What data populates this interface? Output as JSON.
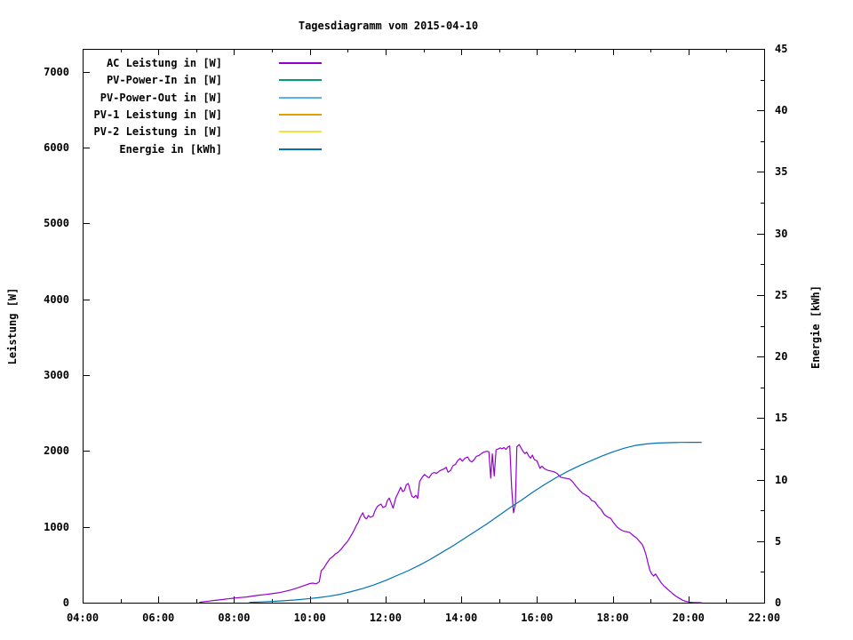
{
  "chart_data": {
    "type": "line",
    "title": "Tagesdiagramm vom 2015-04-10",
    "ylabel_left": "Leistung [W]",
    "ylabel_right": "Energie [kWh]",
    "x_axis": {
      "unit": "time",
      "range_hours": [
        4,
        22
      ],
      "major_tick_hours": [
        4,
        6,
        8,
        10,
        12,
        14,
        16,
        18,
        20,
        22
      ],
      "major_tick_labels": [
        "04:00",
        "06:00",
        "08:00",
        "10:00",
        "12:00",
        "14:00",
        "16:00",
        "18:00",
        "20:00",
        "22:00"
      ],
      "minor_tick_hours": [
        5,
        7,
        9,
        11,
        13,
        15,
        17,
        19,
        21
      ]
    },
    "y_left_axis": {
      "label": "Leistung [W]",
      "min": 0,
      "max": 7300,
      "tick_values": [
        0,
        1000,
        2000,
        3000,
        4000,
        5000,
        6000,
        7000
      ]
    },
    "y_right_axis": {
      "label": "Energie [kWh]",
      "min": 0,
      "max": 45,
      "major_tick_values": [
        0,
        5,
        10,
        15,
        20,
        25,
        30,
        35,
        40,
        45
      ],
      "minor_tick_values": [
        2.5,
        7.5,
        12.5,
        17.5,
        22.5,
        27.5,
        32.5,
        37.5,
        42.5
      ]
    },
    "grid": false,
    "legend_position": "top-left-inside",
    "legend": [
      {
        "label": "AC Leistung in [W]",
        "color": "#9400d3"
      },
      {
        "label": "PV-Power-In in [W]",
        "color": "#009e73"
      },
      {
        "label": "PV-Power-Out in [W]",
        "color": "#56b4e9"
      },
      {
        "label": "PV-1 Leistung in [W]",
        "color": "#e69f00"
      },
      {
        "label": "PV-2 Leistung in [W]",
        "color": "#f0e442"
      },
      {
        "label": "Energie in [kWh]",
        "color": "#0072b2"
      }
    ],
    "series": [
      {
        "name": "AC Leistung in [W]",
        "color": "#9400d3",
        "axis": "left",
        "points": [
          [
            7.08,
            5
          ],
          [
            7.2,
            12
          ],
          [
            7.33,
            20
          ],
          [
            7.5,
            30
          ],
          [
            7.67,
            40
          ],
          [
            7.83,
            50
          ],
          [
            8.0,
            60
          ],
          [
            8.17,
            68
          ],
          [
            8.33,
            75
          ],
          [
            8.5,
            88
          ],
          [
            8.67,
            100
          ],
          [
            8.83,
            108
          ],
          [
            9.0,
            118
          ],
          [
            9.17,
            130
          ],
          [
            9.33,
            148
          ],
          [
            9.5,
            168
          ],
          [
            9.67,
            195
          ],
          [
            9.83,
            222
          ],
          [
            10.0,
            252
          ],
          [
            10.08,
            258
          ],
          [
            10.17,
            248
          ],
          [
            10.25,
            275
          ],
          [
            10.3,
            420
          ],
          [
            10.37,
            455
          ],
          [
            10.45,
            520
          ],
          [
            10.53,
            580
          ],
          [
            10.6,
            605
          ],
          [
            10.67,
            640
          ],
          [
            10.75,
            665
          ],
          [
            10.83,
            705
          ],
          [
            10.92,
            765
          ],
          [
            11.0,
            810
          ],
          [
            11.08,
            875
          ],
          [
            11.17,
            955
          ],
          [
            11.22,
            1010
          ],
          [
            11.28,
            1060
          ],
          [
            11.33,
            1125
          ],
          [
            11.4,
            1185
          ],
          [
            11.45,
            1120
          ],
          [
            11.5,
            1105
          ],
          [
            11.55,
            1150
          ],
          [
            11.6,
            1125
          ],
          [
            11.67,
            1140
          ],
          [
            11.72,
            1210
          ],
          [
            11.78,
            1265
          ],
          [
            11.83,
            1285
          ],
          [
            11.88,
            1300
          ],
          [
            11.93,
            1255
          ],
          [
            12.0,
            1270
          ],
          [
            12.05,
            1345
          ],
          [
            12.1,
            1380
          ],
          [
            12.15,
            1310
          ],
          [
            12.2,
            1245
          ],
          [
            12.27,
            1380
          ],
          [
            12.33,
            1445
          ],
          [
            12.4,
            1520
          ],
          [
            12.45,
            1465
          ],
          [
            12.5,
            1480
          ],
          [
            12.55,
            1555
          ],
          [
            12.6,
            1570
          ],
          [
            12.65,
            1480
          ],
          [
            12.7,
            1400
          ],
          [
            12.75,
            1385
          ],
          [
            12.8,
            1415
          ],
          [
            12.85,
            1375
          ],
          [
            12.9,
            1595
          ],
          [
            12.97,
            1655
          ],
          [
            13.03,
            1690
          ],
          [
            13.1,
            1660
          ],
          [
            13.15,
            1645
          ],
          [
            13.22,
            1700
          ],
          [
            13.28,
            1715
          ],
          [
            13.35,
            1705
          ],
          [
            13.42,
            1735
          ],
          [
            13.48,
            1750
          ],
          [
            13.55,
            1765
          ],
          [
            13.6,
            1785
          ],
          [
            13.65,
            1720
          ],
          [
            13.72,
            1745
          ],
          [
            13.78,
            1805
          ],
          [
            13.85,
            1825
          ],
          [
            13.9,
            1870
          ],
          [
            13.97,
            1900
          ],
          [
            14.03,
            1865
          ],
          [
            14.1,
            1905
          ],
          [
            14.17,
            1920
          ],
          [
            14.22,
            1875
          ],
          [
            14.28,
            1855
          ],
          [
            14.33,
            1880
          ],
          [
            14.4,
            1930
          ],
          [
            14.47,
            1940
          ],
          [
            14.53,
            1965
          ],
          [
            14.6,
            1985
          ],
          [
            14.67,
            1995
          ],
          [
            14.73,
            1990
          ],
          [
            14.78,
            1640
          ],
          [
            14.82,
            1960
          ],
          [
            14.87,
            1670
          ],
          [
            14.92,
            2015
          ],
          [
            14.97,
            2025
          ],
          [
            15.03,
            2040
          ],
          [
            15.08,
            2030
          ],
          [
            15.13,
            2045
          ],
          [
            15.18,
            2020
          ],
          [
            15.23,
            2050
          ],
          [
            15.28,
            2065
          ],
          [
            15.33,
            1520
          ],
          [
            15.38,
            1185
          ],
          [
            15.43,
            1290
          ],
          [
            15.47,
            2055
          ],
          [
            15.53,
            2085
          ],
          [
            15.58,
            2040
          ],
          [
            15.63,
            1995
          ],
          [
            15.68,
            1965
          ],
          [
            15.73,
            1985
          ],
          [
            15.78,
            1935
          ],
          [
            15.83,
            1905
          ],
          [
            15.88,
            1945
          ],
          [
            15.93,
            1885
          ],
          [
            16.0,
            1870
          ],
          [
            16.08,
            1770
          ],
          [
            16.13,
            1800
          ],
          [
            16.2,
            1765
          ],
          [
            16.28,
            1745
          ],
          [
            16.37,
            1735
          ],
          [
            16.45,
            1725
          ],
          [
            16.53,
            1705
          ],
          [
            16.62,
            1655
          ],
          [
            16.7,
            1645
          ],
          [
            16.78,
            1638
          ],
          [
            16.87,
            1628
          ],
          [
            16.95,
            1590
          ],
          [
            17.03,
            1535
          ],
          [
            17.12,
            1485
          ],
          [
            17.2,
            1445
          ],
          [
            17.28,
            1420
          ],
          [
            17.37,
            1395
          ],
          [
            17.45,
            1345
          ],
          [
            17.53,
            1330
          ],
          [
            17.62,
            1265
          ],
          [
            17.7,
            1225
          ],
          [
            17.78,
            1160
          ],
          [
            17.87,
            1130
          ],
          [
            17.95,
            1110
          ],
          [
            18.03,
            1050
          ],
          [
            18.12,
            995
          ],
          [
            18.2,
            965
          ],
          [
            18.28,
            945
          ],
          [
            18.37,
            935
          ],
          [
            18.45,
            925
          ],
          [
            18.53,
            890
          ],
          [
            18.62,
            855
          ],
          [
            18.68,
            825
          ],
          [
            18.73,
            795
          ],
          [
            18.78,
            768
          ],
          [
            18.83,
            710
          ],
          [
            18.88,
            630
          ],
          [
            18.93,
            525
          ],
          [
            18.98,
            430
          ],
          [
            19.03,
            380
          ],
          [
            19.08,
            350
          ],
          [
            19.13,
            378
          ],
          [
            19.18,
            340
          ],
          [
            19.27,
            268
          ],
          [
            19.35,
            222
          ],
          [
            19.43,
            185
          ],
          [
            19.52,
            148
          ],
          [
            19.6,
            112
          ],
          [
            19.68,
            82
          ],
          [
            19.77,
            55
          ],
          [
            19.85,
            32
          ],
          [
            19.93,
            18
          ],
          [
            20.02,
            8
          ],
          [
            20.1,
            4
          ],
          [
            20.2,
            2
          ],
          [
            20.35,
            0
          ]
        ]
      },
      {
        "name": "Energie in [kWh]",
        "color": "#0072b2",
        "axis": "right",
        "points": [
          [
            8.4,
            0.03
          ],
          [
            8.7,
            0.06
          ],
          [
            9.0,
            0.1
          ],
          [
            9.3,
            0.15
          ],
          [
            9.6,
            0.22
          ],
          [
            9.9,
            0.3
          ],
          [
            10.2,
            0.4
          ],
          [
            10.5,
            0.52
          ],
          [
            10.8,
            0.68
          ],
          [
            11.1,
            0.9
          ],
          [
            11.4,
            1.15
          ],
          [
            11.7,
            1.45
          ],
          [
            12.0,
            1.8
          ],
          [
            12.3,
            2.2
          ],
          [
            12.6,
            2.6
          ],
          [
            12.9,
            3.05
          ],
          [
            13.2,
            3.55
          ],
          [
            13.5,
            4.1
          ],
          [
            13.8,
            4.65
          ],
          [
            14.1,
            5.25
          ],
          [
            14.4,
            5.85
          ],
          [
            14.7,
            6.45
          ],
          [
            15.0,
            7.1
          ],
          [
            15.3,
            7.75
          ],
          [
            15.6,
            8.35
          ],
          [
            15.9,
            9.0
          ],
          [
            16.2,
            9.6
          ],
          [
            16.5,
            10.15
          ],
          [
            16.8,
            10.65
          ],
          [
            17.1,
            11.1
          ],
          [
            17.4,
            11.5
          ],
          [
            17.7,
            11.9
          ],
          [
            18.0,
            12.25
          ],
          [
            18.3,
            12.55
          ],
          [
            18.6,
            12.78
          ],
          [
            18.9,
            12.9
          ],
          [
            19.2,
            12.97
          ],
          [
            19.5,
            13.0
          ],
          [
            19.8,
            13.02
          ],
          [
            20.1,
            13.03
          ],
          [
            20.35,
            13.03
          ]
        ]
      }
    ]
  }
}
